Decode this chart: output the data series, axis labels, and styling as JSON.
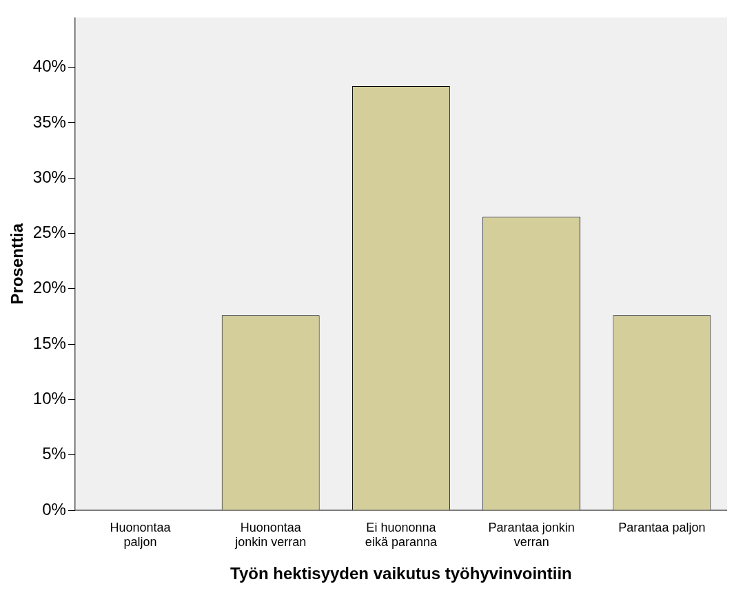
{
  "chart_data": {
    "type": "bar",
    "xlabel": "Työn hektisyyden vaikutus työhyvinvointiin",
    "ylabel": "Prosenttia",
    "categories": [
      "Huonontaa paljon",
      "Huonontaa jonkin verran",
      "Ei huononna eikä paranna",
      "Parantaa jonkin verran",
      "Parantaa paljon"
    ],
    "values": [
      0,
      17.6,
      38.3,
      26.5,
      17.6
    ],
    "color": "#d4cf9a",
    "ylim": [
      0,
      44.5
    ],
    "yticks": [
      {
        "value": 0,
        "label": "0%"
      },
      {
        "value": 5,
        "label": "5%"
      },
      {
        "value": 10,
        "label": "10%"
      },
      {
        "value": 15,
        "label": "15%"
      },
      {
        "value": 20,
        "label": "20%"
      },
      {
        "value": 25,
        "label": "25%"
      },
      {
        "value": 30,
        "label": "30%"
      },
      {
        "value": 35,
        "label": "35%"
      },
      {
        "value": 40,
        "label": "40%"
      }
    ],
    "grid": false,
    "legend": false
  }
}
